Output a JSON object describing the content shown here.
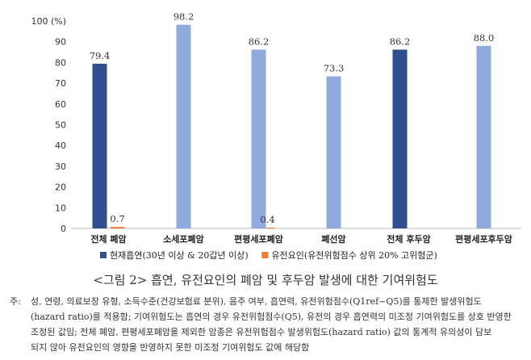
{
  "chart_data": {
    "type": "bar",
    "title": "",
    "xlabel": "",
    "ylabel": "",
    "y_unit": "(%)",
    "ylim": [
      0,
      100
    ],
    "yticks": [
      0,
      10,
      20,
      30,
      40,
      50,
      60,
      70,
      80,
      90,
      100
    ],
    "categories": [
      "전체 폐암",
      "소세포폐암",
      "편평세포폐암",
      "폐선암",
      "전체 후두암",
      "편평세포후두암"
    ],
    "series": [
      {
        "name": "현재흡연(30년 이상 & 20갑년 이상)",
        "color": "#2f4f8f",
        "values": [
          79.4,
          null,
          null,
          null,
          86.2,
          null
        ],
        "labels": [
          "79.4",
          "",
          "",
          "",
          "86.2",
          ""
        ]
      },
      {
        "name": "유전요인(유전위험점수 상위 20% 고위험군)",
        "color": "#ed7d31",
        "values": [
          0.7,
          null,
          0.4,
          null,
          null,
          null
        ],
        "labels": [
          "0.7",
          "",
          "0.4",
          "",
          "",
          ""
        ]
      }
    ],
    "single_bars": [
      {
        "category_index": 1,
        "value": 98.2,
        "label": "98.2",
        "color": "#8faadc"
      },
      {
        "category_index": 2,
        "value": 86.2,
        "label": "86.2",
        "color": "#8faadc"
      },
      {
        "category_index": 3,
        "value": 73.3,
        "label": "73.3",
        "color": "#8faadc"
      },
      {
        "category_index": 5,
        "value": 88.0,
        "label": "88.0",
        "color": "#8faadc"
      }
    ],
    "grid": false,
    "legend_position": "bottom"
  },
  "caption": "<그림 2> 흡연, 유전요인의 폐암 및 후두암 발생에 대한 기여위험도",
  "note": {
    "prefix": "주:",
    "lines": [
      "성, 연령, 의료보장 유형, 소득수준(건강보험료 분위), 음주 여부, 흡연력, 유전위험점수(Q1ref~Q5)를 통제한 발생위험도",
      "(hazard ratio)를 적용함; 기여위험도는 흡연의 경우 유전위험점수(Q5), 유전의 경우 흡연력의 미조정 기여위험도를 상호 반영한",
      "조정된 값임; 전체 폐암, 편평세포폐암을 제외한 암종은 유전위험점수 발생위험도(hazard ratio) 값의 통계적 유의성이 담보",
      "되지 않아 유전요인의 영향을 반영하지 못한 미조정 기여위험도 값에 해당함"
    ]
  }
}
